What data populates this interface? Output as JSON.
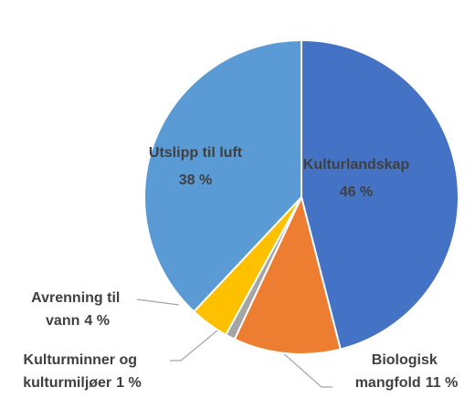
{
  "chart_data": {
    "type": "pie",
    "categories": [
      "Kulturlandskap",
      "Biologisk mangfold",
      "Kulturminner og kulturmiljøer",
      "Avrenning til vann",
      "Utslipp til luft"
    ],
    "values": [
      46,
      11,
      1,
      4,
      38
    ],
    "value_labels": [
      "46 %",
      "11 %",
      "1 %",
      "4 %",
      "38 %"
    ],
    "colors": [
      "#4472c4",
      "#ed7d31",
      "#a5a5a5",
      "#ffc000",
      "#5b9bd5"
    ]
  }
}
